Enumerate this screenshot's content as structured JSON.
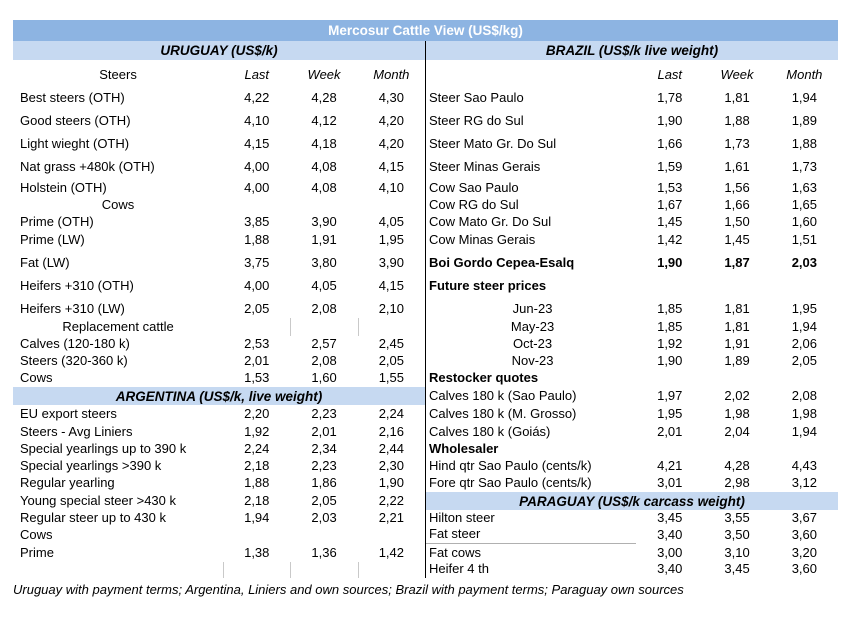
{
  "title": "Mercosur Cattle View (US$/kg)",
  "columns": {
    "last": "Last",
    "week": "Week",
    "month": "Month"
  },
  "colors": {
    "title_bg": "#8DB4E2",
    "title_text": "#FFFFFF",
    "band_bg": "#C6D9F1",
    "divider": "#000000",
    "tick_border": "#C9C9C9"
  },
  "left_rows": [
    {
      "type": "band",
      "label": "URUGUAY (US$/k)"
    },
    {
      "type": "colheader",
      "label": "Steers"
    },
    {
      "label": "Best steers (OTH)",
      "last": "4,22",
      "week": "4,28",
      "month": "4,30"
    },
    {
      "label": "Good steers (OTH)",
      "last": "4,10",
      "week": "4,12",
      "month": "4,20"
    },
    {
      "label": "Light wieght (OTH)",
      "last": "4,15",
      "week": "4,18",
      "month": "4,20"
    },
    {
      "label": "Nat grass +480k (OTH)",
      "last": "4,00",
      "week": "4,08",
      "month": "4,15"
    },
    {
      "label": "Holstein (OTH)",
      "last": "4,00",
      "week": "4,08",
      "month": "4,10"
    },
    {
      "label": "Cows",
      "sub": true
    },
    {
      "label": "Prime (OTH)",
      "last": "3,85",
      "week": "3,90",
      "month": "4,05"
    },
    {
      "label": "Prime (LW)",
      "last": "1,88",
      "week": "1,91",
      "month": "1,95"
    },
    {
      "label": "Fat (LW)",
      "last": "3,75",
      "week": "3,80",
      "month": "3,90"
    },
    {
      "label": "Heifers +310 (OTH)",
      "last": "4,00",
      "week": "4,05",
      "month": "4,15"
    },
    {
      "label": "Heifers +310 (LW)",
      "last": "2,05",
      "week": "2,08",
      "month": "2,10"
    },
    {
      "label": "Replacement cattle",
      "sub": true,
      "ticks": [
        "week",
        "month"
      ]
    },
    {
      "label": "Calves (120-180 k)",
      "last": "2,53",
      "week": "2,57",
      "month": "2,45"
    },
    {
      "label": "Steers (320-360 k)",
      "last": "2,01",
      "week": "2,08",
      "month": "2,05"
    },
    {
      "label": "Cows",
      "last": "1,53",
      "week": "1,60",
      "month": "1,55"
    },
    {
      "type": "band",
      "label": "ARGENTINA (US$/k, live weight)"
    },
    {
      "label": "EU export steers",
      "last": "2,20",
      "week": "2,23",
      "month": "2,24"
    },
    {
      "label": "Steers - Avg Liniers",
      "last": "1,92",
      "week": "2,01",
      "month": "2,16"
    },
    {
      "label": "Special yearlings up to 390 k",
      "last": "2,24",
      "week": "2,34",
      "month": "2,44"
    },
    {
      "label": "Special yearlings >390 k",
      "last": "2,18",
      "week": "2,23",
      "month": "2,30"
    },
    {
      "label": "Regular yearling",
      "last": "1,88",
      "week": "1,86",
      "month": "1,90"
    },
    {
      "label": "Young special steer >430 k",
      "last": "2,18",
      "week": "2,05",
      "month": "2,22"
    },
    {
      "label": "Regular steer up to 430 k",
      "last": "1,94",
      "week": "2,03",
      "month": "2,21"
    },
    {
      "label": "Cows"
    },
    {
      "label": "Prime",
      "last": "1,38",
      "week": "1,36",
      "month": "1,42"
    },
    {
      "label": "",
      "ticks": [
        "last",
        "week",
        "month"
      ]
    }
  ],
  "right_rows": [
    {
      "type": "band",
      "label": "BRAZIL (US$/k live weight)"
    },
    {
      "type": "colheader",
      "label": ""
    },
    {
      "label": "Steer Sao Paulo",
      "last": "1,78",
      "week": "1,81",
      "month": "1,94"
    },
    {
      "label": "Steer RG do Sul",
      "last": "1,90",
      "week": "1,88",
      "month": "1,89"
    },
    {
      "label": "Steer Mato Gr. Do Sul",
      "last": "1,66",
      "week": "1,73",
      "month": "1,88"
    },
    {
      "label": "Steer Minas Gerais",
      "last": "1,59",
      "week": "1,61",
      "month": "1,73"
    },
    {
      "label": "Cow Sao Paulo",
      "last": "1,53",
      "week": "1,56",
      "month": "1,63"
    },
    {
      "label": "Cow RG do Sul",
      "last": "1,67",
      "week": "1,66",
      "month": "1,65"
    },
    {
      "label": "Cow Mato Gr. Do Sul",
      "last": "1,45",
      "week": "1,50",
      "month": "1,60"
    },
    {
      "label": "Cow Minas Gerais",
      "last": "1,42",
      "week": "1,45",
      "month": "1,51"
    },
    {
      "label": "Boi Gordo Cepea-Esalq",
      "last": "1,90",
      "week": "1,87",
      "month": "2,03",
      "bold": true
    },
    {
      "label": "Future steer prices",
      "bold": true
    },
    {
      "label": "Jun-23",
      "last": "1,85",
      "week": "1,81",
      "month": "1,95",
      "sub": true
    },
    {
      "label": "May-23",
      "last": "1,85",
      "week": "1,81",
      "month": "1,94",
      "sub": true
    },
    {
      "label": "Oct-23",
      "last": "1,92",
      "week": "1,91",
      "month": "2,06",
      "sub": true
    },
    {
      "label": "Nov-23",
      "last": "1,90",
      "week": "1,89",
      "month": "2,05",
      "sub": true
    },
    {
      "label": "Restocker quotes",
      "bold": true
    },
    {
      "label": "Calves 180 k (Sao Paulo)",
      "last": "1,97",
      "week": "2,02",
      "month": "2,08"
    },
    {
      "label": "Calves 180 k (M. Grosso)",
      "last": "1,95",
      "week": "1,98",
      "month": "1,98"
    },
    {
      "label": "Calves 180 k (Goiás)",
      "last": "2,01",
      "week": "2,04",
      "month": "1,94"
    },
    {
      "label": "Wholesaler",
      "bold": true
    },
    {
      "label": "Hind qtr Sao Paulo (cents/k)",
      "last": "4,21",
      "week": "4,28",
      "month": "4,43"
    },
    {
      "label": "Fore qtr Sao Paulo (cents/k)",
      "last": "3,01",
      "week": "2,98",
      "month": "3,12"
    },
    {
      "type": "band",
      "label": "PARAGUAY (US$/k carcass weight)"
    },
    {
      "label": "Hilton steer",
      "last": "3,45",
      "week": "3,55",
      "month": "3,67"
    },
    {
      "label": "Fat steer",
      "last": "3,40",
      "week": "3,50",
      "month": "3,60",
      "underline": true
    },
    {
      "label": "Fat cows",
      "last": "3,00",
      "week": "3,10",
      "month": "3,20"
    },
    {
      "label": "Heifer 4 th",
      "last": "3,40",
      "week": "3,45",
      "month": "3,60"
    }
  ],
  "footnote": "Uruguay with payment terms; Argentina, Liniers and own sources; Brazil with payment terms; Paraguay own sources"
}
